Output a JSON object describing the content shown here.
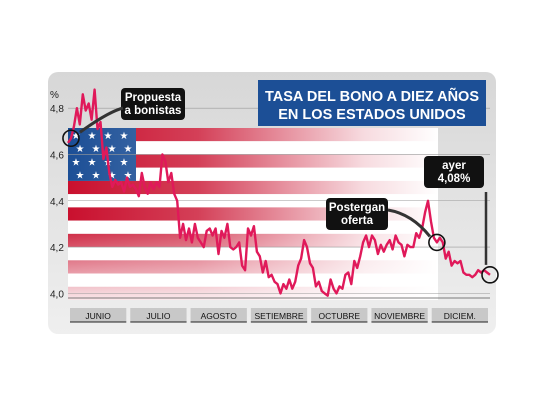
{
  "chart_data": {
    "type": "line",
    "title_lines": [
      "TASA DEL BONO A DIEZ AÑOS",
      "EN LOS  ESTADOS UNIDOS"
    ],
    "y_unit": "%",
    "yticks": [
      "4,8",
      "4,6",
      "4,4",
      "4,2",
      "4,0"
    ],
    "ylim": [
      3.98,
      4.9
    ],
    "months": [
      "JUNIO",
      "JULIO",
      "AGOSTO",
      "SETIEMBRE",
      "OCTUBRE",
      "NOVIEMBRE",
      "DICIEM."
    ],
    "xlim": [
      0,
      143
    ],
    "series": [
      {
        "x": [
          0,
          1,
          2,
          3,
          4,
          5,
          6,
          7,
          8,
          9,
          10,
          11,
          12,
          13,
          14,
          15,
          16,
          17,
          18,
          19,
          20,
          21,
          22,
          23,
          24,
          25,
          26,
          27,
          28,
          29,
          30,
          31,
          32,
          33,
          34,
          35,
          36,
          37,
          38,
          39,
          40,
          41,
          42,
          43,
          44,
          45,
          46,
          47,
          48,
          49,
          50,
          51,
          52,
          53,
          54,
          55,
          56,
          57,
          58,
          59,
          60,
          61,
          62,
          63,
          64,
          65,
          66,
          67,
          68,
          69,
          70,
          71,
          72,
          73,
          74,
          75,
          76,
          77,
          78,
          79,
          80,
          81,
          82,
          83,
          84,
          85,
          86,
          87,
          88,
          89,
          90,
          91,
          92,
          93,
          94,
          95,
          96,
          97,
          98,
          99,
          100,
          101,
          102,
          103,
          104,
          105,
          106,
          107,
          108,
          109,
          110,
          111,
          112,
          113,
          114,
          115,
          116,
          117,
          118,
          119,
          120,
          121,
          122,
          123,
          124,
          125,
          126,
          127,
          128,
          129,
          130,
          131,
          132,
          133,
          134,
          135,
          136,
          137,
          138,
          139,
          140,
          141,
          142,
          143
        ],
        "values": [
          4.65,
          4.67,
          4.72,
          4.8,
          4.73,
          4.86,
          4.79,
          4.82,
          4.75,
          4.88,
          4.71,
          4.74,
          4.58,
          4.63,
          4.52,
          4.46,
          4.49,
          4.47,
          4.48,
          4.44,
          4.5,
          4.46,
          4.47,
          4.45,
          4.42,
          4.52,
          4.46,
          4.43,
          4.48,
          4.45,
          4.48,
          4.46,
          4.6,
          4.57,
          4.48,
          4.52,
          4.43,
          4.4,
          4.24,
          4.3,
          4.23,
          4.28,
          4.22,
          4.3,
          4.24,
          4.22,
          4.2,
          4.27,
          4.28,
          4.25,
          4.28,
          4.17,
          4.27,
          4.24,
          4.3,
          4.2,
          4.19,
          4.2,
          4.22,
          4.12,
          4.1,
          4.28,
          4.25,
          4.29,
          4.18,
          4.16,
          4.09,
          4.14,
          4.07,
          4.08,
          4.05,
          4.04,
          4.0,
          4.04,
          4.02,
          4.06,
          4.02,
          4.05,
          4.12,
          4.15,
          4.23,
          4.2,
          4.13,
          4.11,
          4.03,
          4.05,
          4.01,
          4.0,
          3.99,
          4.06,
          4.02,
          4.0,
          4.03,
          4.02,
          4.08,
          4.09,
          4.04,
          4.14,
          4.11,
          4.16,
          4.22,
          4.25,
          4.2,
          4.25,
          4.23,
          4.17,
          4.21,
          4.18,
          4.21,
          4.23,
          4.19,
          4.25,
          4.22,
          4.21,
          4.16,
          4.21,
          4.2,
          4.2,
          4.26,
          4.24,
          4.28,
          4.35,
          4.4,
          4.31,
          4.24,
          4.22,
          4.24,
          4.22,
          4.15,
          4.18,
          4.12,
          4.14,
          4.13,
          4.14,
          4.09,
          4.08,
          4.08,
          4.07,
          4.08,
          4.1,
          4.09,
          4.1,
          4.09,
          4.08
        ],
        "color": "#e0195a"
      }
    ],
    "annotations": [
      {
        "lines": [
          "Propuesta",
          "a bonistas"
        ],
        "at_x": 1
      },
      {
        "lines": [
          "Postergan",
          "oferta"
        ],
        "at_x": 125
      },
      {
        "lines": [
          "ayer",
          "4,08%"
        ],
        "at_x": 143
      }
    ],
    "colors": {
      "line": "#e0195a",
      "title_box": "#1c4f96",
      "title_text": "#ffffff",
      "label_box": "#111111",
      "label_text": "#ffffff",
      "stripe": "#c9102e",
      "union": "#1c4f96",
      "month_bar": "#c8c8c8"
    }
  }
}
